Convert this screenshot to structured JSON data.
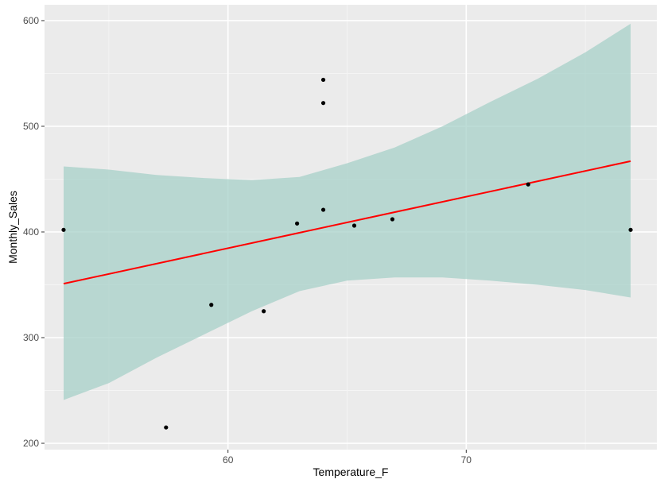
{
  "chart_data": {
    "type": "scatter",
    "title": "",
    "xlabel": "Temperature_F",
    "ylabel": "Monthly_Sales",
    "xlim": [
      52.3,
      78.0
    ],
    "ylim": [
      194,
      615
    ],
    "x_ticks": [
      60,
      70
    ],
    "y_ticks": [
      200,
      300,
      400,
      500,
      600
    ],
    "x_minor_ticks": [
      55,
      65,
      75
    ],
    "y_minor_ticks": [
      250,
      350,
      450,
      550
    ],
    "grid": true,
    "legend": "none",
    "points": [
      {
        "x": 53.1,
        "y": 402
      },
      {
        "x": 57.4,
        "y": 215
      },
      {
        "x": 59.3,
        "y": 331
      },
      {
        "x": 61.5,
        "y": 325
      },
      {
        "x": 62.9,
        "y": 408
      },
      {
        "x": 64.0,
        "y": 544
      },
      {
        "x": 64.0,
        "y": 522
      },
      {
        "x": 64.0,
        "y": 421
      },
      {
        "x": 65.3,
        "y": 406
      },
      {
        "x": 66.9,
        "y": 412
      },
      {
        "x": 72.6,
        "y": 445
      },
      {
        "x": 76.9,
        "y": 402
      }
    ],
    "regression": {
      "method": "linear",
      "fit": [
        {
          "x": 53.1,
          "y": 351
        },
        {
          "x": 76.9,
          "y": 467
        }
      ],
      "confidence_band": [
        {
          "x": 53.1,
          "lower": 241,
          "upper": 462
        },
        {
          "x": 55.0,
          "lower": 257,
          "upper": 459
        },
        {
          "x": 57.0,
          "lower": 281,
          "upper": 454
        },
        {
          "x": 59.0,
          "lower": 303,
          "upper": 451
        },
        {
          "x": 61.0,
          "lower": 325,
          "upper": 449
        },
        {
          "x": 63.0,
          "lower": 344,
          "upper": 452
        },
        {
          "x": 65.0,
          "lower": 354,
          "upper": 465
        },
        {
          "x": 67.0,
          "lower": 357,
          "upper": 480
        },
        {
          "x": 69.0,
          "lower": 357,
          "upper": 500
        },
        {
          "x": 71.0,
          "lower": 354,
          "upper": 523
        },
        {
          "x": 73.0,
          "lower": 350,
          "upper": 545
        },
        {
          "x": 75.0,
          "lower": 345,
          "upper": 570
        },
        {
          "x": 76.9,
          "lower": 338,
          "upper": 597
        }
      ]
    },
    "colors": {
      "panel_background": "#ebebeb",
      "grid_major": "#ffffff",
      "grid_minor": "#f5f5f5",
      "points": "#000000",
      "fit_line": "#ff0000",
      "confidence_band": "#a7d0c8"
    }
  }
}
